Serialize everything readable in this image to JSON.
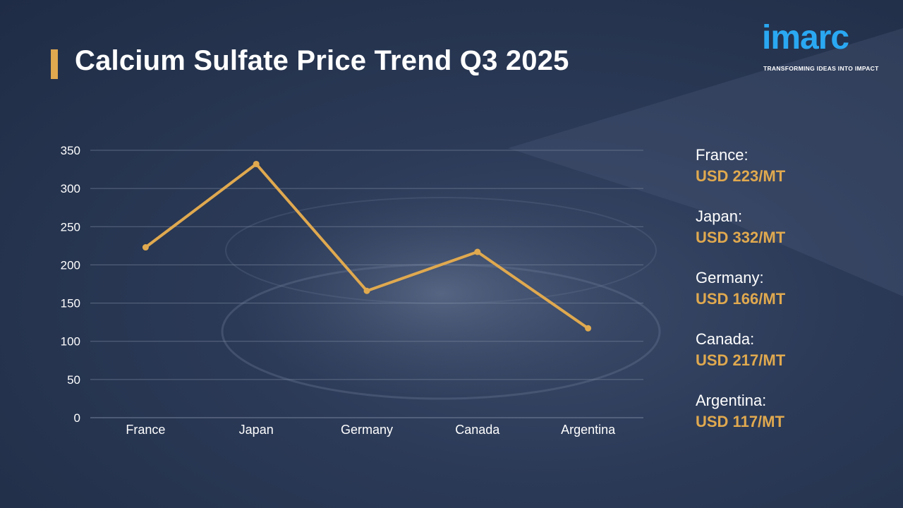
{
  "title": "Calcium Sulfate Price Trend Q3 2025",
  "logo": {
    "word": "imarc",
    "tagline": "TRANSFORMING IDEAS INTO IMPACT"
  },
  "colors": {
    "accent": "#e0a94f",
    "logo": "#2aa8f2",
    "grid": "#7e8aa3",
    "text": "#ffffff"
  },
  "chart_data": {
    "type": "line",
    "categories": [
      "France",
      "Japan",
      "Germany",
      "Canada",
      "Argentina"
    ],
    "series": [
      {
        "values": [
          223,
          332,
          166,
          217,
          117
        ]
      }
    ],
    "ylim": [
      0,
      350
    ],
    "yticks": [
      0,
      50,
      100,
      150,
      200,
      250,
      300,
      350
    ],
    "grid": true,
    "legend": "right"
  },
  "legend": [
    {
      "country": "France:",
      "price": "USD 223/MT"
    },
    {
      "country": "Japan:",
      "price": "USD 332/MT"
    },
    {
      "country": "Germany:",
      "price": "USD 166/MT"
    },
    {
      "country": "Canada:",
      "price": "USD 217/MT"
    },
    {
      "country": "Argentina:",
      "price": "USD 117/MT"
    }
  ]
}
